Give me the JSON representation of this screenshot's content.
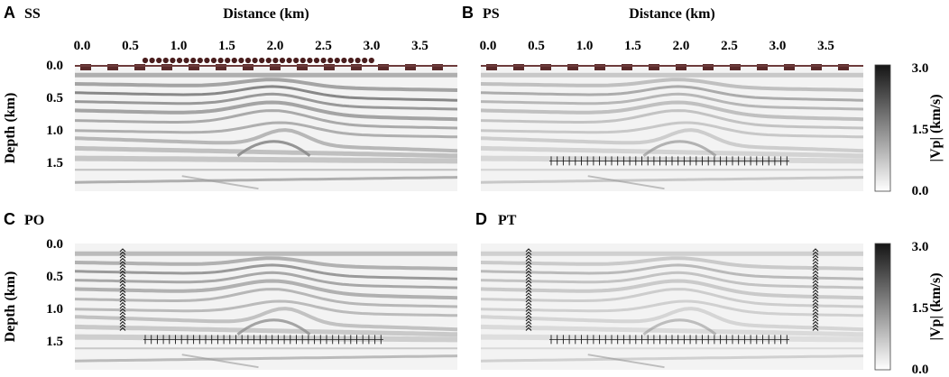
{
  "figure": {
    "x_axis_title": "Distance (km)",
    "y_axis_title": "Depth (km)",
    "x_ticks": [
      "0.0",
      "0.5",
      "1.0",
      "1.5",
      "2.0",
      "2.5",
      "3.0",
      "3.5"
    ],
    "y_ticks": [
      "0.0",
      "0.5",
      "1.0",
      "1.5"
    ],
    "colorbar": {
      "label": "|Vp| (km/s)",
      "ticks": [
        "3.0",
        "1.5",
        "0.0"
      ],
      "range": [
        0.0,
        3.0
      ]
    },
    "panels": [
      {
        "letter": "A",
        "title": "SS",
        "sources": "surface",
        "receivers": "surface"
      },
      {
        "letter": "B",
        "title": "PS",
        "sources": "surface",
        "receivers": "horizontal-well"
      },
      {
        "letter": "C",
        "title": "PO",
        "sources": "vertical-well-left",
        "receivers": "horizontal-well"
      },
      {
        "letter": "D",
        "title": "PT",
        "sources": "vertical-wells-both",
        "receivers": "horizontal-well"
      }
    ],
    "colors": {
      "surface_receiver": "#4a1e1e",
      "surface_source": "#5a2a2a",
      "well_marker": "#1a1a1a",
      "image_background": "#f2f2f2"
    }
  }
}
